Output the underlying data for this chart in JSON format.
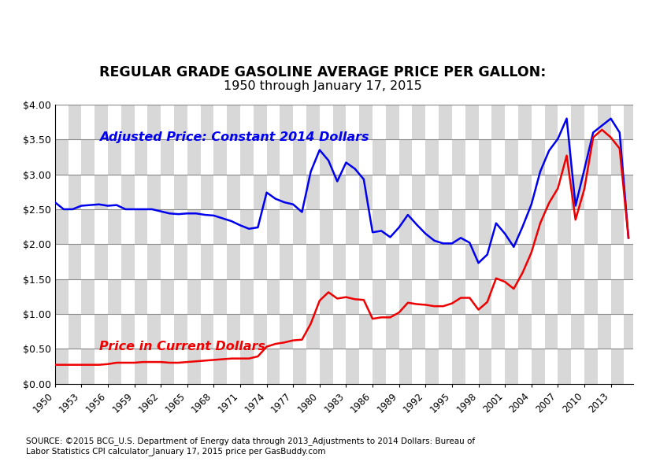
{
  "title_line1": "REGULAR GRADE GASOLINE AVERAGE PRICE PER GALLON:",
  "title_line2": "1950 through January 17, 2015",
  "source_text": "SOURCE: ©2015 BCG_U.S. Department of Energy data through 2013_Adjustments to 2014 Dollars: Bureau of\nLabor Statistics CPI calculator_January 17, 2015 price per GasBuddy.com",
  "blue_label": "Adjusted Price: Constant 2014 Dollars",
  "red_label": "Price in Current Dollars",
  "blue_color": "#0000EE",
  "red_color": "#EE0000",
  "background_color": "#FFFFFF",
  "checker_light": "#D8D8D8",
  "checker_dark": "#FFFFFF",
  "grid_color": "#888888",
  "ylim": [
    0.0,
    4.0
  ],
  "xtick_years": [
    1950,
    1953,
    1956,
    1959,
    1962,
    1965,
    1968,
    1971,
    1974,
    1977,
    1980,
    1983,
    1986,
    1989,
    1992,
    1995,
    1998,
    2001,
    2004,
    2007,
    2010,
    2013
  ],
  "years": [
    1950,
    1951,
    1952,
    1953,
    1954,
    1955,
    1956,
    1957,
    1958,
    1959,
    1960,
    1961,
    1962,
    1963,
    1964,
    1965,
    1966,
    1967,
    1968,
    1969,
    1970,
    1971,
    1972,
    1973,
    1974,
    1975,
    1976,
    1977,
    1978,
    1979,
    1980,
    1981,
    1982,
    1983,
    1984,
    1985,
    1986,
    1987,
    1988,
    1989,
    1990,
    1991,
    1992,
    1993,
    1994,
    1995,
    1996,
    1997,
    1998,
    1999,
    2000,
    2001,
    2002,
    2003,
    2004,
    2005,
    2006,
    2007,
    2008,
    2009,
    2010,
    2011,
    2012,
    2013,
    2014,
    2015
  ],
  "current_price": [
    0.27,
    0.27,
    0.27,
    0.27,
    0.27,
    0.27,
    0.28,
    0.3,
    0.3,
    0.3,
    0.31,
    0.31,
    0.31,
    0.3,
    0.3,
    0.31,
    0.32,
    0.33,
    0.34,
    0.35,
    0.36,
    0.36,
    0.36,
    0.39,
    0.53,
    0.57,
    0.59,
    0.62,
    0.63,
    0.86,
    1.19,
    1.31,
    1.22,
    1.24,
    1.21,
    1.2,
    0.93,
    0.95,
    0.95,
    1.02,
    1.16,
    1.14,
    1.13,
    1.11,
    1.11,
    1.15,
    1.23,
    1.23,
    1.06,
    1.17,
    1.51,
    1.46,
    1.36,
    1.59,
    1.88,
    2.3,
    2.59,
    2.8,
    3.27,
    2.35,
    2.79,
    3.53,
    3.64,
    3.53,
    3.37,
    2.09
  ],
  "adjusted_price": [
    2.6,
    2.5,
    2.5,
    2.55,
    2.56,
    2.57,
    2.55,
    2.56,
    2.5,
    2.5,
    2.5,
    2.5,
    2.47,
    2.44,
    2.43,
    2.44,
    2.44,
    2.42,
    2.41,
    2.37,
    2.33,
    2.27,
    2.22,
    2.24,
    2.74,
    2.65,
    2.6,
    2.57,
    2.46,
    3.04,
    3.35,
    3.2,
    2.9,
    3.17,
    3.08,
    2.93,
    2.17,
    2.19,
    2.1,
    2.24,
    2.42,
    2.28,
    2.15,
    2.05,
    2.01,
    2.01,
    2.09,
    2.02,
    1.73,
    1.85,
    2.3,
    2.15,
    1.96,
    2.25,
    2.57,
    3.04,
    3.34,
    3.51,
    3.8,
    2.55,
    3.07,
    3.6,
    3.7,
    3.8,
    3.6,
    2.09
  ]
}
